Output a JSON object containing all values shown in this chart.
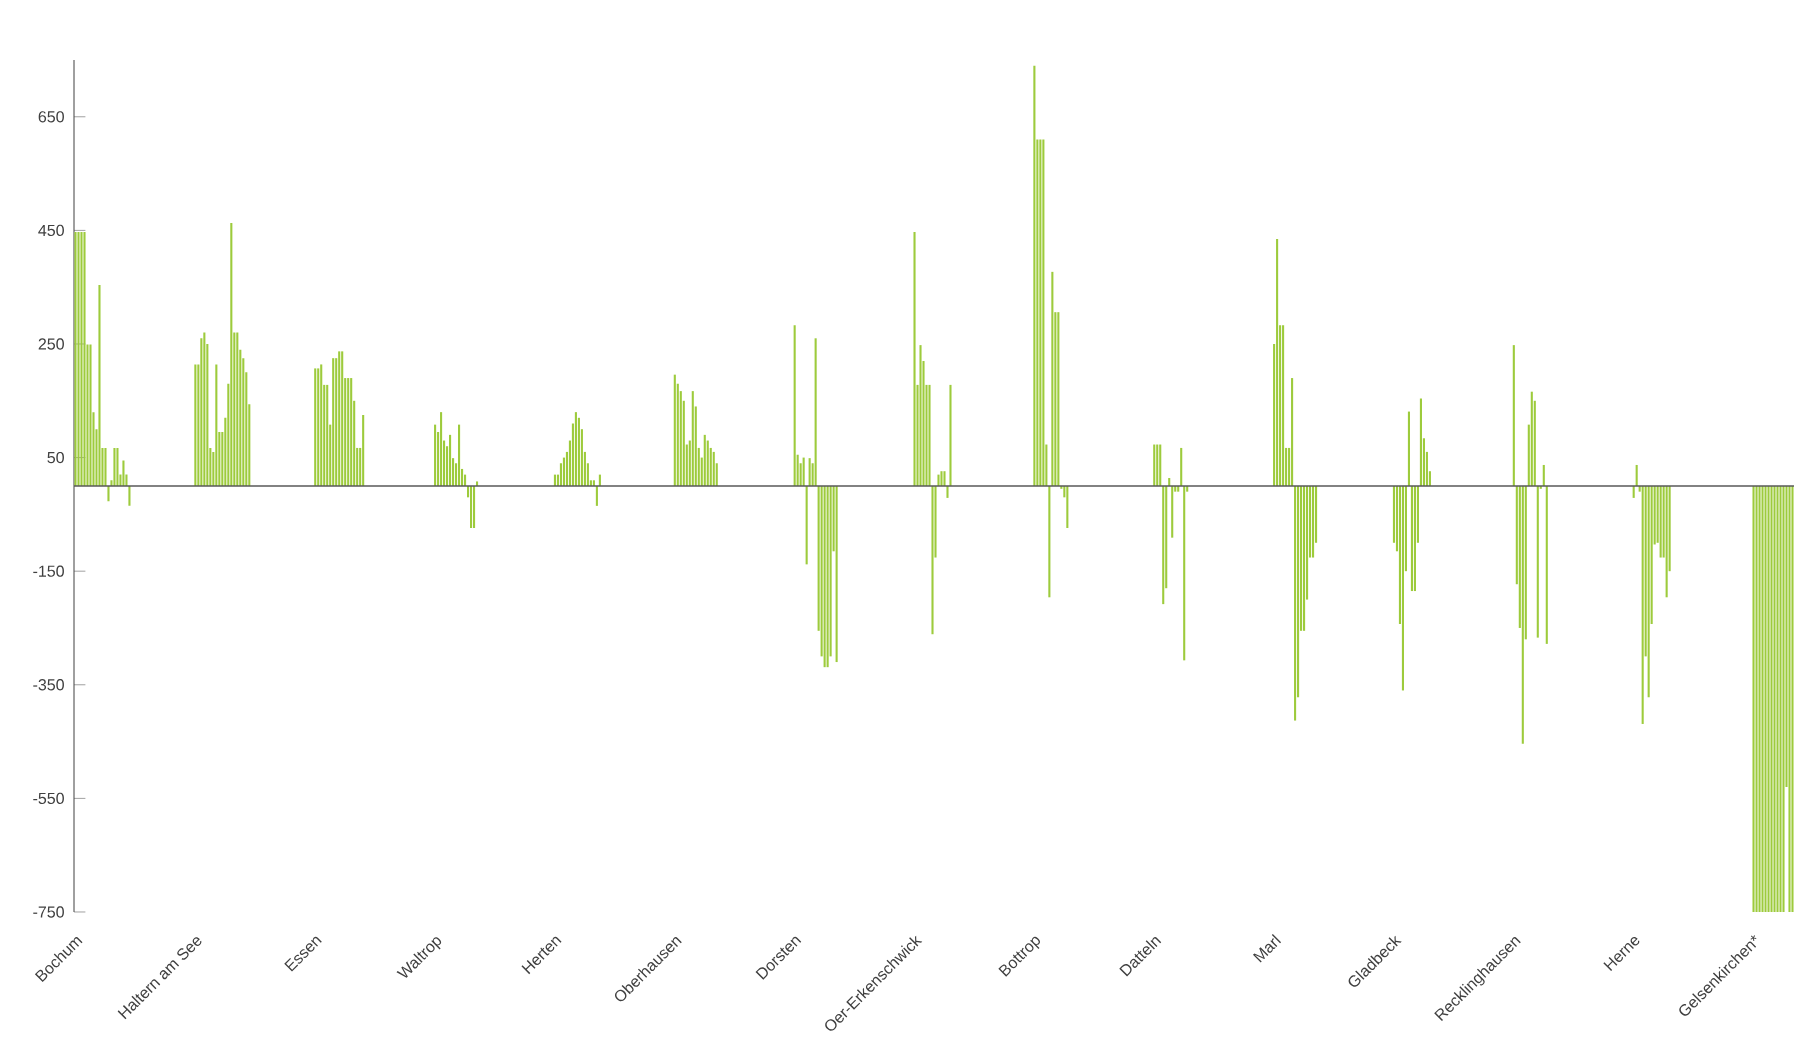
{
  "chart_data": {
    "type": "bar",
    "color": "#9dcb3c",
    "ylim": [
      -750,
      750
    ],
    "yticks": [
      -750,
      -550,
      -350,
      -150,
      50,
      250,
      450,
      650
    ],
    "categories": [
      "Bochum",
      null,
      null,
      null,
      null,
      null,
      null,
      null,
      null,
      null,
      null,
      null,
      null,
      null,
      null,
      null,
      null,
      null,
      null,
      null,
      null,
      null,
      null,
      null,
      null,
      null,
      null,
      null,
      null,
      null,
      null,
      null,
      null,
      null,
      null,
      null,
      null,
      null,
      null,
      null,
      "Haltern am See",
      null,
      null,
      null,
      null,
      null,
      null,
      null,
      null,
      null,
      null,
      null,
      null,
      null,
      null,
      null,
      null,
      null,
      null,
      null,
      null,
      null,
      null,
      null,
      null,
      null,
      null,
      null,
      null,
      null,
      null,
      null,
      null,
      null,
      null,
      null,
      null,
      null,
      null,
      null,
      "Essen",
      null,
      null,
      null,
      null,
      null,
      null,
      null,
      null,
      null,
      null,
      null,
      null,
      null,
      null,
      null,
      null,
      null,
      null,
      null,
      null,
      null,
      null,
      null,
      null,
      null,
      null,
      null,
      null,
      null,
      null,
      null,
      null,
      null,
      null,
      null,
      null,
      null,
      null,
      null,
      "Waltrop",
      null,
      null,
      null,
      null,
      null,
      null,
      null,
      null,
      null,
      null,
      null,
      null,
      null,
      null,
      null,
      null,
      null,
      null,
      null,
      null,
      null,
      null,
      null,
      null,
      null,
      null,
      null,
      null,
      null,
      null,
      null,
      null,
      null,
      null,
      null,
      null,
      null,
      null,
      null,
      "Herten",
      null,
      null,
      null,
      null,
      null,
      null,
      null,
      null,
      null,
      null,
      null,
      null,
      null,
      null,
      null,
      null,
      null,
      null,
      null,
      null,
      null,
      null,
      null,
      null,
      null,
      null,
      null,
      null,
      null,
      null,
      null,
      null,
      null,
      null,
      null,
      null,
      null,
      null,
      null,
      "Oberhausen",
      null,
      null,
      null,
      null,
      null,
      null,
      null,
      null,
      null,
      null,
      null,
      null,
      null,
      null,
      null,
      null,
      null,
      null,
      null,
      null,
      null,
      null,
      null,
      null,
      null,
      null,
      null,
      null,
      null,
      null,
      null,
      null,
      null,
      null,
      null,
      null,
      null,
      null,
      null,
      "Dorsten",
      null,
      null,
      null,
      null,
      null,
      null,
      null,
      null,
      null,
      null,
      null,
      null,
      null,
      null,
      null,
      null,
      null,
      null,
      null,
      null,
      null,
      null,
      null,
      null,
      null,
      null,
      null,
      null,
      null,
      null,
      null,
      null,
      null,
      null,
      null,
      null,
      null,
      null,
      null,
      "Oer-Erkenschwick",
      null,
      null,
      null,
      null,
      null,
      null,
      null,
      null,
      null,
      null,
      null,
      null,
      null,
      null,
      null,
      null,
      null,
      null,
      null,
      null,
      null,
      null,
      null,
      null,
      null,
      null,
      null,
      null,
      null,
      null,
      null,
      null,
      null,
      null,
      null,
      null,
      null,
      null,
      null,
      "Bottrop",
      null,
      null,
      null,
      null,
      null,
      null,
      null,
      null,
      null,
      null,
      null,
      null,
      null,
      null,
      null,
      null,
      null,
      null,
      null,
      null,
      null,
      null,
      null,
      null,
      null,
      null,
      null,
      null,
      null,
      null,
      null,
      null,
      null,
      null,
      null,
      null,
      null,
      null,
      null,
      "Datteln",
      null,
      null,
      null,
      null,
      null,
      null,
      null,
      null,
      null,
      null,
      null,
      null,
      null,
      null,
      null,
      null,
      null,
      null,
      null,
      null,
      null,
      null,
      null,
      null,
      null,
      null,
      null,
      null,
      null,
      null,
      null,
      null,
      null,
      null,
      null,
      null,
      null,
      null,
      null,
      "Marl",
      null,
      null,
      null,
      null,
      null,
      null,
      null,
      null,
      null,
      null,
      null,
      null,
      null,
      null,
      null,
      null,
      null,
      null,
      null,
      null,
      null,
      null,
      null,
      null,
      null,
      null,
      null,
      null,
      null,
      null,
      null,
      null,
      null,
      null,
      null,
      null,
      null,
      null,
      null,
      "Gladbeck",
      null,
      null,
      null,
      null,
      null,
      null,
      null,
      null,
      null,
      null,
      null,
      null,
      null,
      null,
      null,
      null,
      null,
      null,
      null,
      null,
      null,
      null,
      null,
      null,
      null,
      null,
      null,
      null,
      null,
      null,
      null,
      null,
      null,
      null,
      null,
      null,
      null,
      null,
      null,
      "Recklinghausen",
      null,
      null,
      null,
      null,
      null,
      null,
      null,
      null,
      null,
      null,
      null,
      null,
      null,
      null,
      null,
      null,
      null,
      null,
      null,
      null,
      null,
      null,
      null,
      null,
      null,
      null,
      null,
      null,
      null,
      null,
      null,
      null,
      null,
      null,
      null,
      null,
      null,
      null,
      null,
      "Herne",
      null,
      null,
      null,
      null,
      null,
      null,
      null,
      null,
      null,
      null,
      null,
      null,
      null,
      null,
      null,
      null,
      null,
      null,
      null,
      null,
      null,
      null,
      null,
      null,
      null,
      null,
      null,
      null,
      null,
      null,
      null,
      null,
      null,
      null,
      null,
      null,
      null,
      null,
      null,
      "Gelsenkirchen*",
      null,
      null,
      null,
      null,
      null,
      null,
      null,
      null,
      null,
      null,
      null,
      null,
      null
    ],
    "values": [
      447,
      447,
      447,
      447,
      249,
      249,
      130,
      100,
      354,
      67,
      67,
      -27,
      10,
      67,
      67,
      20,
      45,
      20,
      -35,
      null,
      null,
      null,
      null,
      null,
      null,
      null,
      null,
      null,
      null,
      null,
      null,
      null,
      null,
      null,
      null,
      null,
      null,
      null,
      null,
      null,
      214,
      214,
      260,
      270,
      250,
      67,
      60,
      214,
      95,
      95,
      120,
      180,
      463,
      270,
      270,
      240,
      225,
      200,
      144,
      null,
      null,
      null,
      null,
      null,
      null,
      null,
      null,
      null,
      null,
      null,
      null,
      null,
      null,
      null,
      null,
      null,
      null,
      null,
      null,
      null,
      207,
      207,
      214,
      178,
      178,
      108,
      225,
      225,
      237,
      237,
      190,
      190,
      190,
      150,
      67,
      67,
      125,
      null,
      null,
      null,
      null,
      null,
      null,
      null,
      null,
      null,
      null,
      null,
      null,
      null,
      null,
      null,
      null,
      null,
      null,
      null,
      null,
      null,
      null,
      null,
      108,
      95,
      130,
      80,
      70,
      90,
      49,
      40,
      108,
      30,
      20,
      -20,
      -74,
      -74,
      8,
      null,
      null,
      null,
      null,
      null,
      null,
      null,
      null,
      null,
      null,
      null,
      null,
      null,
      null,
      null,
      null,
      null,
      null,
      null,
      null,
      null,
      null,
      null,
      null,
      null,
      20,
      20,
      40,
      50,
      60,
      80,
      110,
      130,
      120,
      100,
      60,
      40,
      10,
      10,
      -35,
      20,
      null,
      null,
      null,
      null,
      null,
      null,
      null,
      null,
      null,
      null,
      null,
      null,
      null,
      null,
      null,
      null,
      null,
      null,
      null,
      null,
      null,
      null,
      null,
      null,
      196,
      180,
      167,
      150,
      73,
      80,
      167,
      140,
      67,
      50,
      90,
      80,
      67,
      60,
      40,
      null,
      null,
      null,
      null,
      null,
      null,
      null,
      null,
      null,
      null,
      null,
      null,
      null,
      null,
      null,
      null,
      null,
      null,
      null,
      null,
      null,
      null,
      null,
      null,
      null,
      283,
      55,
      40,
      50,
      -138,
      49,
      40,
      260,
      -255,
      -300,
      -319,
      -319,
      -300,
      -115,
      -310,
      null,
      null,
      null,
      null,
      null,
      null,
      null,
      null,
      null,
      null,
      null,
      null,
      null,
      null,
      null,
      null,
      null,
      null,
      null,
      null,
      null,
      null,
      null,
      null,
      null,
      447,
      178,
      248,
      220,
      178,
      178,
      -261,
      -126,
      20,
      26,
      26,
      -21,
      178,
      null,
      null,
      null,
      null,
      null,
      null,
      null,
      null,
      null,
      null,
      null,
      null,
      null,
      null,
      null,
      null,
      null,
      null,
      null,
      null,
      null,
      null,
      null,
      null,
      null,
      null,
      null,
      740,
      610,
      610,
      610,
      73,
      -196,
      377,
      306,
      306,
      -5,
      -20,
      -74,
      null,
      null,
      null,
      null,
      null,
      null,
      null,
      null,
      null,
      null,
      null,
      null,
      null,
      null,
      null,
      null,
      null,
      null,
      null,
      null,
      null,
      null,
      null,
      null,
      null,
      null,
      null,
      null,
      73,
      73,
      73,
      -208,
      -180,
      14,
      -91,
      -10,
      -10,
      67,
      -307,
      -10,
      null,
      null,
      null,
      null,
      null,
      null,
      null,
      null,
      null,
      null,
      null,
      null,
      null,
      null,
      null,
      null,
      null,
      null,
      null,
      null,
      null,
      null,
      null,
      null,
      null,
      null,
      null,
      null,
      250,
      435,
      283,
      283,
      67,
      67,
      190,
      -413,
      -372,
      -255,
      -255,
      -200,
      -126,
      -126,
      -100,
      null,
      null,
      null,
      null,
      null,
      null,
      null,
      null,
      null,
      null,
      null,
      null,
      null,
      null,
      null,
      null,
      null,
      null,
      null,
      null,
      null,
      null,
      null,
      null,
      null,
      -100,
      -115,
      -243,
      -360,
      -150,
      131,
      -185,
      -185,
      -100,
      154,
      84,
      60,
      26,
      null,
      null,
      null,
      null,
      null,
      null,
      null,
      null,
      null,
      null,
      null,
      null,
      null,
      null,
      null,
      null,
      null,
      null,
      null,
      null,
      null,
      null,
      null,
      null,
      null,
      null,
      null,
      248,
      -173,
      -250,
      -454,
      -270,
      108,
      166,
      150,
      -267,
      -5,
      37,
      -278,
      null,
      null,
      null,
      null,
      null,
      null,
      null,
      null,
      null,
      null,
      null,
      null,
      null,
      null,
      null,
      null,
      null,
      null,
      null,
      null,
      null,
      null,
      null,
      null,
      null,
      null,
      null,
      null,
      -21,
      37,
      -10,
      -419,
      -300,
      -372,
      -243,
      -103,
      -100,
      -126,
      -126,
      -196,
      -150,
      null,
      null,
      null,
      null,
      null,
      null,
      null,
      null,
      null,
      null,
      null,
      null,
      null,
      null,
      null,
      null,
      null,
      null,
      null,
      null,
      null,
      null,
      null,
      null,
      null,
      null,
      null,
      -750,
      -750,
      -750,
      -750,
      -750,
      -750,
      -750,
      -750,
      -750,
      -750,
      -750,
      -530,
      -750,
      -750
    ]
  }
}
